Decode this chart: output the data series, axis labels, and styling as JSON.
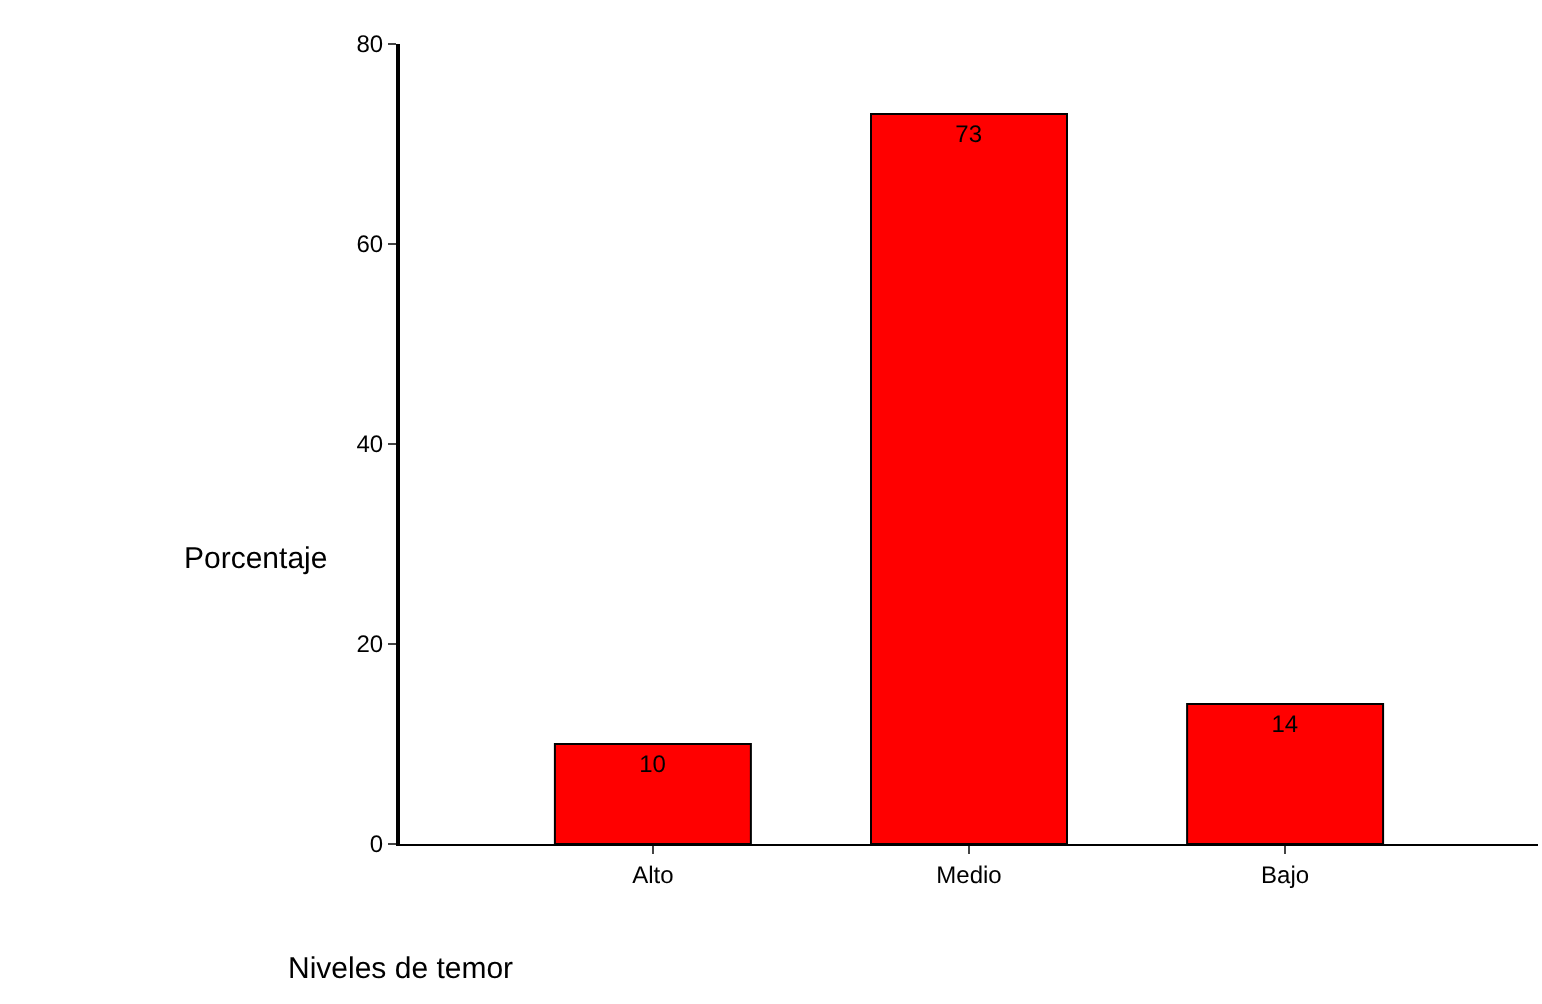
{
  "chart_data": {
    "type": "bar",
    "xlabel": "Niveles de temor",
    "ylabel": "Porcentaje",
    "categories": [
      "Alto",
      "Medio",
      "Bajo"
    ],
    "values": [
      10,
      73,
      14
    ],
    "color": "#ff0000",
    "ylim": [
      0,
      80
    ],
    "yticks": [
      0,
      20,
      40,
      60,
      80
    ],
    "legend": false,
    "data_labels": true
  }
}
